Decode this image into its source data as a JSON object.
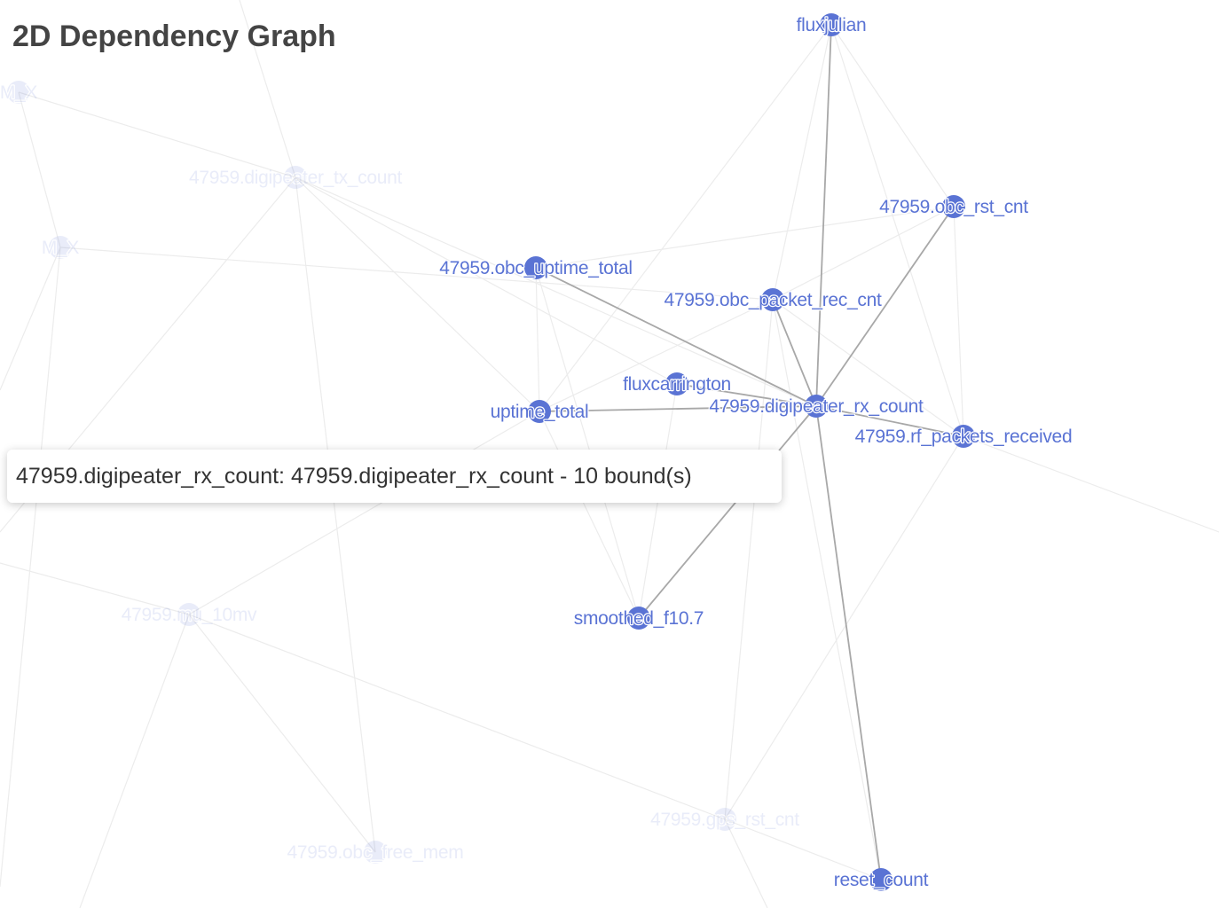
{
  "title": "2D Dependency Graph",
  "tooltip": {
    "text": "47959.digipeater_rx_count: 47959.digipeater_rx_count - 10 bound(s)"
  },
  "colors": {
    "node": "#5a73d4",
    "node_dim": "#5a73d4",
    "label": "#5a73d4",
    "edge_active": "#a8a8a8",
    "edge_dim": "#ececec",
    "title": "#444444"
  },
  "graph": {
    "focused_node": "47959.digipeater_rx_count",
    "nodes": [
      {
        "id": "fluxjulian",
        "label": "fluxjulian",
        "highlighted": true
      },
      {
        "id": "obc_rst_cnt",
        "label": "47959.obc_rst_cnt",
        "highlighted": true
      },
      {
        "id": "obc_uptime_total",
        "label": "47959.obc_uptime_total",
        "highlighted": true
      },
      {
        "id": "obc_packet_rec_cnt",
        "label": "47959.obc_packet_rec_cnt",
        "highlighted": true
      },
      {
        "id": "fluxcarrington",
        "label": "fluxcarrington",
        "highlighted": true
      },
      {
        "id": "uptime_total",
        "label": "uptime_total",
        "highlighted": true
      },
      {
        "id": "digipeater_rx_count",
        "label": "47959.digipeater_rx_count",
        "highlighted": true
      },
      {
        "id": "rf_packets_received",
        "label": "47959.rf_packets_received",
        "highlighted": true
      },
      {
        "id": "smoothed_f10_7",
        "label": "smoothed_f10.7",
        "highlighted": true
      },
      {
        "id": "reset_count",
        "label": "reset_count",
        "highlighted": true
      },
      {
        "id": "m_x_top",
        "label": "M_X",
        "highlighted": false
      },
      {
        "id": "m_x_mid",
        "label": "M_X",
        "highlighted": false
      },
      {
        "id": "digipeater_tx_count",
        "label": "47959.digipeater_tx_count",
        "highlighted": false
      },
      {
        "id": "mu_10mv",
        "label": "47959.mu_10mv",
        "highlighted": false
      },
      {
        "id": "gps_rst_cnt",
        "label": "47959.gps_rst_cnt",
        "highlighted": false
      },
      {
        "id": "obc_free_mem",
        "label": "47959.obc_free_mem",
        "highlighted": false
      }
    ],
    "edges": [
      {
        "source": "digipeater_rx_count",
        "target": "fluxjulian",
        "active": true
      },
      {
        "source": "digipeater_rx_count",
        "target": "obc_rst_cnt",
        "active": true
      },
      {
        "source": "digipeater_rx_count",
        "target": "obc_uptime_total",
        "active": true
      },
      {
        "source": "digipeater_rx_count",
        "target": "obc_packet_rec_cnt",
        "active": true
      },
      {
        "source": "digipeater_rx_count",
        "target": "fluxcarrington",
        "active": true
      },
      {
        "source": "digipeater_rx_count",
        "target": "uptime_total",
        "active": true
      },
      {
        "source": "digipeater_rx_count",
        "target": "rf_packets_received",
        "active": true
      },
      {
        "source": "digipeater_rx_count",
        "target": "smoothed_f10_7",
        "active": true
      },
      {
        "source": "digipeater_rx_count",
        "target": "reset_count",
        "active": true
      },
      {
        "source": "digipeater_rx_count",
        "target": "digipeater_tx_count",
        "active": false
      },
      {
        "source": "m_x_top",
        "target": "m_x_mid",
        "active": false
      },
      {
        "source": "m_x_top",
        "target": "digipeater_tx_count",
        "active": false
      },
      {
        "source": "m_x_mid",
        "target": "obc_packet_rec_cnt",
        "active": false
      },
      {
        "source": "digipeater_tx_count",
        "target": "fluxcarrington",
        "active": false
      },
      {
        "source": "digipeater_tx_count",
        "target": "obc_free_mem",
        "active": false
      },
      {
        "source": "digipeater_tx_count",
        "target": "uptime_total",
        "active": false
      },
      {
        "source": "fluxjulian",
        "target": "obc_rst_cnt",
        "active": false
      },
      {
        "source": "fluxjulian",
        "target": "rf_packets_received",
        "active": false
      },
      {
        "source": "fluxjulian",
        "target": "obc_packet_rec_cnt",
        "active": false
      },
      {
        "source": "fluxjulian",
        "target": "uptime_total",
        "active": false
      },
      {
        "source": "obc_rst_cnt",
        "target": "obc_uptime_total",
        "active": false
      },
      {
        "source": "obc_rst_cnt",
        "target": "obc_packet_rec_cnt",
        "active": false
      },
      {
        "source": "obc_rst_cnt",
        "target": "rf_packets_received",
        "active": false
      },
      {
        "source": "obc_uptime_total",
        "target": "uptime_total",
        "active": false
      },
      {
        "source": "obc_uptime_total",
        "target": "smoothed_f10_7",
        "active": false
      },
      {
        "source": "obc_packet_rec_cnt",
        "target": "rf_packets_received",
        "active": false
      },
      {
        "source": "obc_packet_rec_cnt",
        "target": "reset_count",
        "active": false
      },
      {
        "source": "obc_packet_rec_cnt",
        "target": "uptime_total",
        "active": false
      },
      {
        "source": "obc_packet_rec_cnt",
        "target": "gps_rst_cnt",
        "active": false
      },
      {
        "source": "fluxcarrington",
        "target": "smoothed_f10_7",
        "active": false
      },
      {
        "source": "uptime_total",
        "target": "smoothed_f10_7",
        "active": false
      },
      {
        "source": "uptime_total",
        "target": "mu_10mv",
        "active": false
      },
      {
        "source": "rf_packets_received",
        "target": "gps_rst_cnt",
        "active": false
      },
      {
        "source": "mu_10mv",
        "target": "gps_rst_cnt",
        "active": false
      },
      {
        "source": "mu_10mv",
        "target": "obc_free_mem",
        "active": false
      },
      {
        "source": "gps_rst_cnt",
        "target": "reset_count",
        "active": false
      }
    ]
  }
}
